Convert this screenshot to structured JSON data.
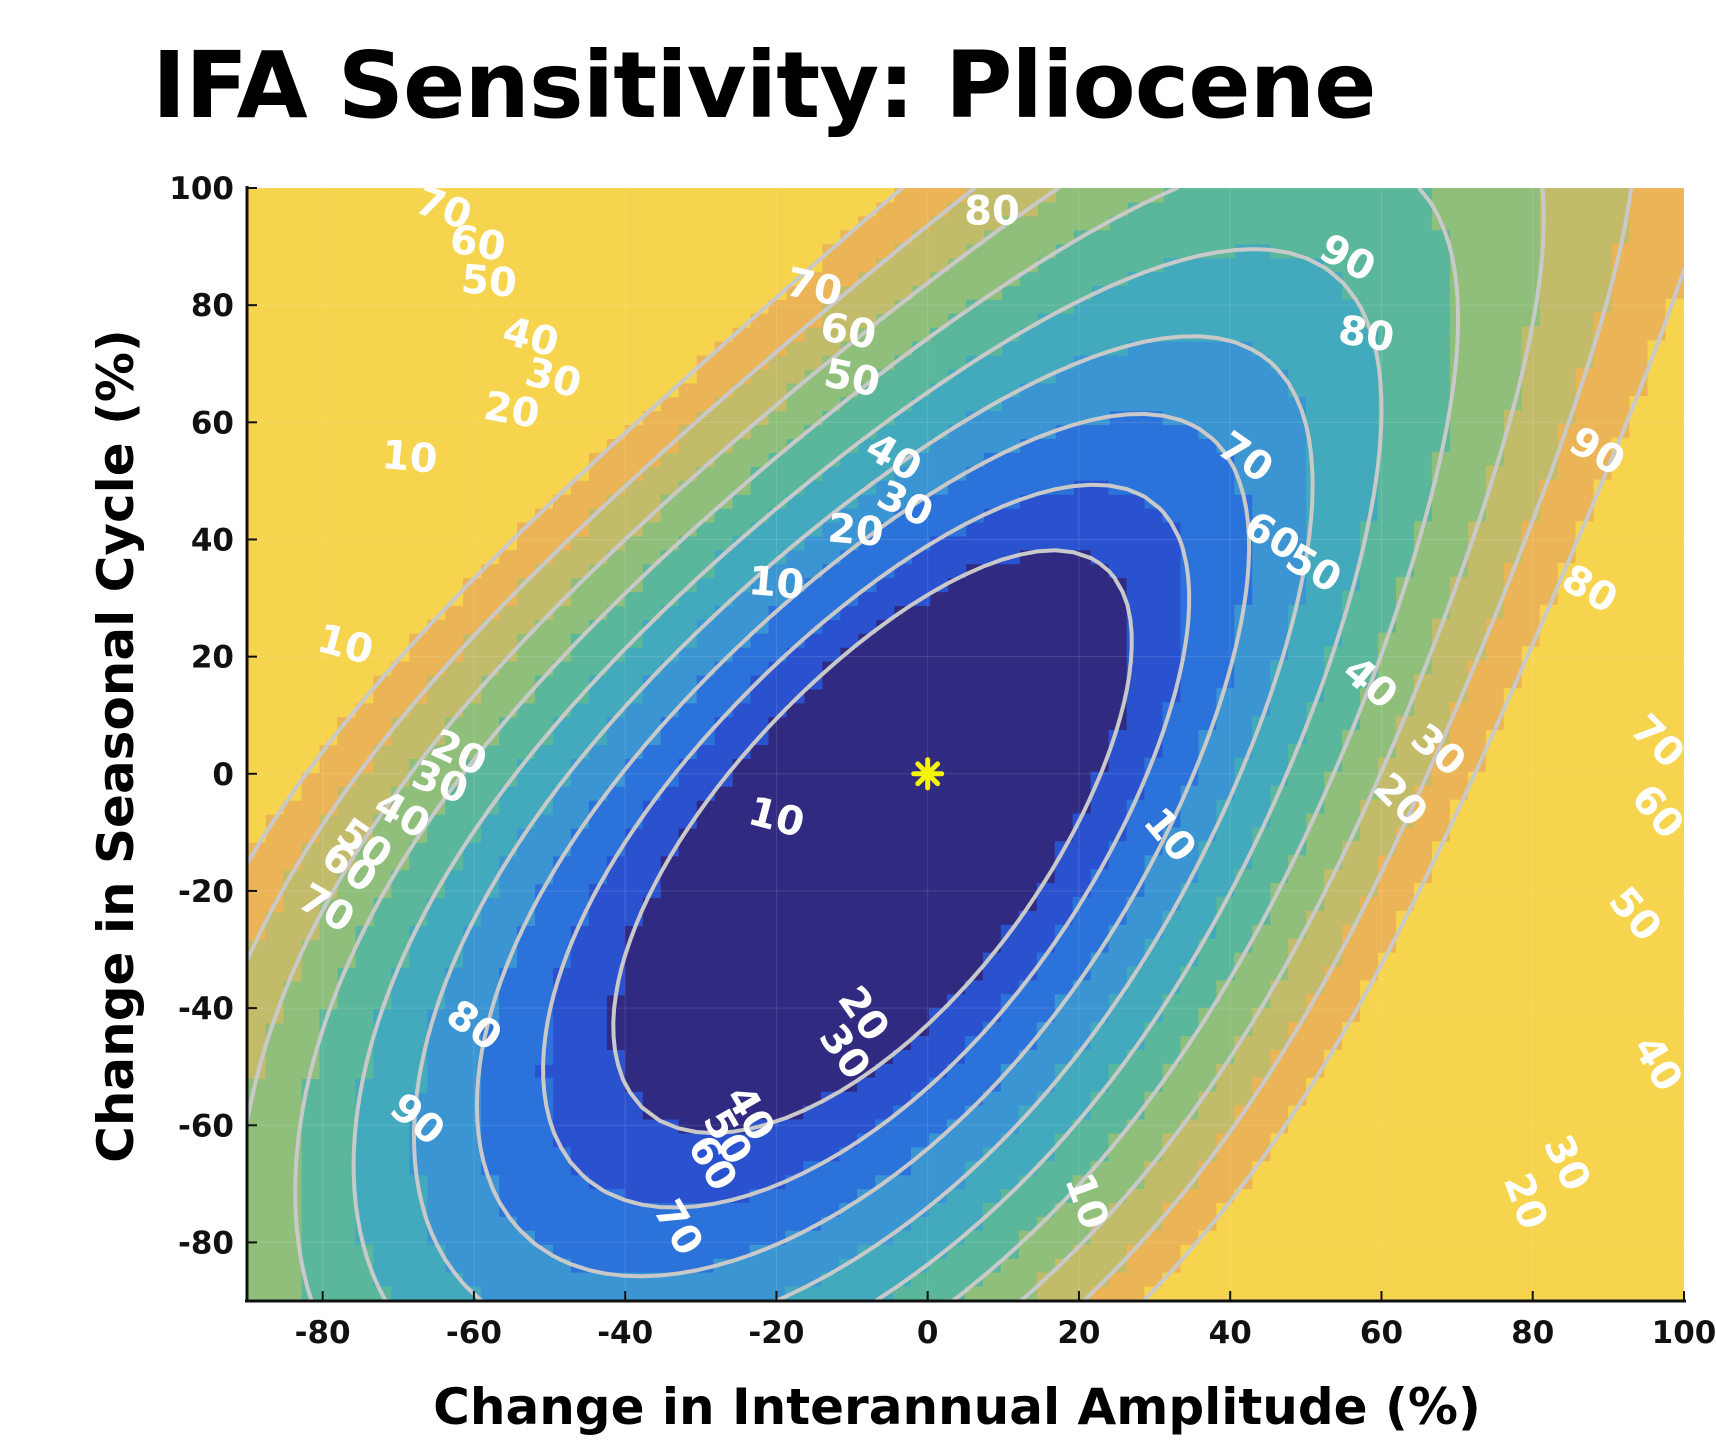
{
  "chart_data": {
    "type": "contour",
    "title": "IFA Sensitivity: Pliocene",
    "xlabel": "Change in Interannual Amplitude (%)",
    "ylabel": "Change in Seasonal Cycle (%)",
    "xlim": [
      -90,
      100
    ],
    "ylim": [
      -90,
      100
    ],
    "xticks": [
      -80,
      -60,
      -40,
      -20,
      0,
      20,
      40,
      60,
      80,
      100
    ],
    "yticks": [
      -80,
      -60,
      -40,
      -20,
      0,
      20,
      40,
      60,
      80,
      100
    ],
    "grid": true,
    "contour_levels": [
      10,
      20,
      30,
      40,
      50,
      60,
      70,
      80,
      90
    ],
    "level_colors": [
      "#302a80",
      "#2a52cf",
      "#2c72db",
      "#3a95d2",
      "#43aabd",
      "#5bb79b",
      "#8fbf7b",
      "#c2bc6a",
      "#ebb456",
      "#f6d44d"
    ],
    "line_color": "#c9c9c9",
    "reference_point": {
      "x": 0,
      "y": 0,
      "marker": "asterisk",
      "color": "#f5f500"
    },
    "contour_labels": [
      {
        "text": "70",
        "x": -64,
        "y": 96.5,
        "rot": 20
      },
      {
        "text": "80",
        "x": 8.5,
        "y": 96,
        "rot": 0
      },
      {
        "text": "90",
        "x": 55.5,
        "y": 88,
        "rot": 28
      },
      {
        "text": "60",
        "x": -59.5,
        "y": 90.5,
        "rot": 10
      },
      {
        "text": "50",
        "x": -58,
        "y": 84,
        "rot": 5
      },
      {
        "text": "70",
        "x": -15,
        "y": 83,
        "rot": 12
      },
      {
        "text": "60",
        "x": -10.5,
        "y": 75.5,
        "rot": 10
      },
      {
        "text": "50",
        "x": -10,
        "y": 67.5,
        "rot": 12
      },
      {
        "text": "80",
        "x": 58,
        "y": 75,
        "rot": 10
      },
      {
        "text": "40",
        "x": -52.5,
        "y": 74.5,
        "rot": 15
      },
      {
        "text": "30",
        "x": -49.5,
        "y": 67.5,
        "rot": 15
      },
      {
        "text": "20",
        "x": -55,
        "y": 62,
        "rot": 10
      },
      {
        "text": "10",
        "x": -68.5,
        "y": 54,
        "rot": 5
      },
      {
        "text": "40",
        "x": -4.5,
        "y": 54,
        "rot": 30
      },
      {
        "text": "30",
        "x": -3,
        "y": 46,
        "rot": 25
      },
      {
        "text": "20",
        "x": -9.5,
        "y": 41.5,
        "rot": 5
      },
      {
        "text": "10",
        "x": -20,
        "y": 32.5,
        "rot": 5
      },
      {
        "text": "70",
        "x": 42,
        "y": 54,
        "rot": 35
      },
      {
        "text": "90",
        "x": 88.5,
        "y": 55,
        "rot": 30
      },
      {
        "text": "60",
        "x": 45.5,
        "y": 40.5,
        "rot": 30
      },
      {
        "text": "50",
        "x": 51,
        "y": 35,
        "rot": 30
      },
      {
        "text": "80",
        "x": 87.5,
        "y": 31.5,
        "rot": 30
      },
      {
        "text": "10",
        "x": -77,
        "y": 22,
        "rot": 15
      },
      {
        "text": "40",
        "x": 58.5,
        "y": 15.5,
        "rot": 40
      },
      {
        "text": "70",
        "x": 96.5,
        "y": 5.5,
        "rot": 45
      },
      {
        "text": "20",
        "x": -62,
        "y": 3.5,
        "rot": 25
      },
      {
        "text": "30",
        "x": -64.5,
        "y": -1.5,
        "rot": 20
      },
      {
        "text": "30",
        "x": 67.5,
        "y": 4,
        "rot": 40
      },
      {
        "text": "20",
        "x": 62.5,
        "y": -4.5,
        "rot": 45
      },
      {
        "text": "60",
        "x": 96.5,
        "y": -6.5,
        "rot": 50
      },
      {
        "text": "40",
        "x": -69.5,
        "y": -7,
        "rot": 30
      },
      {
        "text": "10",
        "x": -20,
        "y": -7.5,
        "rot": 15
      },
      {
        "text": "10",
        "x": 32,
        "y": -10.5,
        "rot": 50
      },
      {
        "text": "50",
        "x": -74.5,
        "y": -12,
        "rot": 35
      },
      {
        "text": "60",
        "x": -76.5,
        "y": -16,
        "rot": 35
      },
      {
        "text": "70",
        "x": -79.5,
        "y": -23,
        "rot": 30
      },
      {
        "text": "50",
        "x": 93.5,
        "y": -24,
        "rot": 50
      },
      {
        "text": "80",
        "x": -60,
        "y": -43,
        "rot": 35
      },
      {
        "text": "20",
        "x": -8.5,
        "y": -41,
        "rot": 55
      },
      {
        "text": "30",
        "x": -11,
        "y": -47.5,
        "rot": 55
      },
      {
        "text": "40",
        "x": 96.5,
        "y": -49.5,
        "rot": 60
      },
      {
        "text": "90",
        "x": -67.5,
        "y": -59,
        "rot": 40
      },
      {
        "text": "40",
        "x": -23.5,
        "y": -58,
        "rot": 60
      },
      {
        "text": "50",
        "x": -26.5,
        "y": -62,
        "rot": 60
      },
      {
        "text": "60",
        "x": -28.5,
        "y": -66.5,
        "rot": 60
      },
      {
        "text": "30",
        "x": 84.5,
        "y": -66.5,
        "rot": 65
      },
      {
        "text": "10",
        "x": 21,
        "y": -73,
        "rot": 70
      },
      {
        "text": "20",
        "x": 79,
        "y": -73,
        "rot": 70
      },
      {
        "text": "70",
        "x": -33,
        "y": -77.5,
        "rot": 60
      }
    ]
  }
}
